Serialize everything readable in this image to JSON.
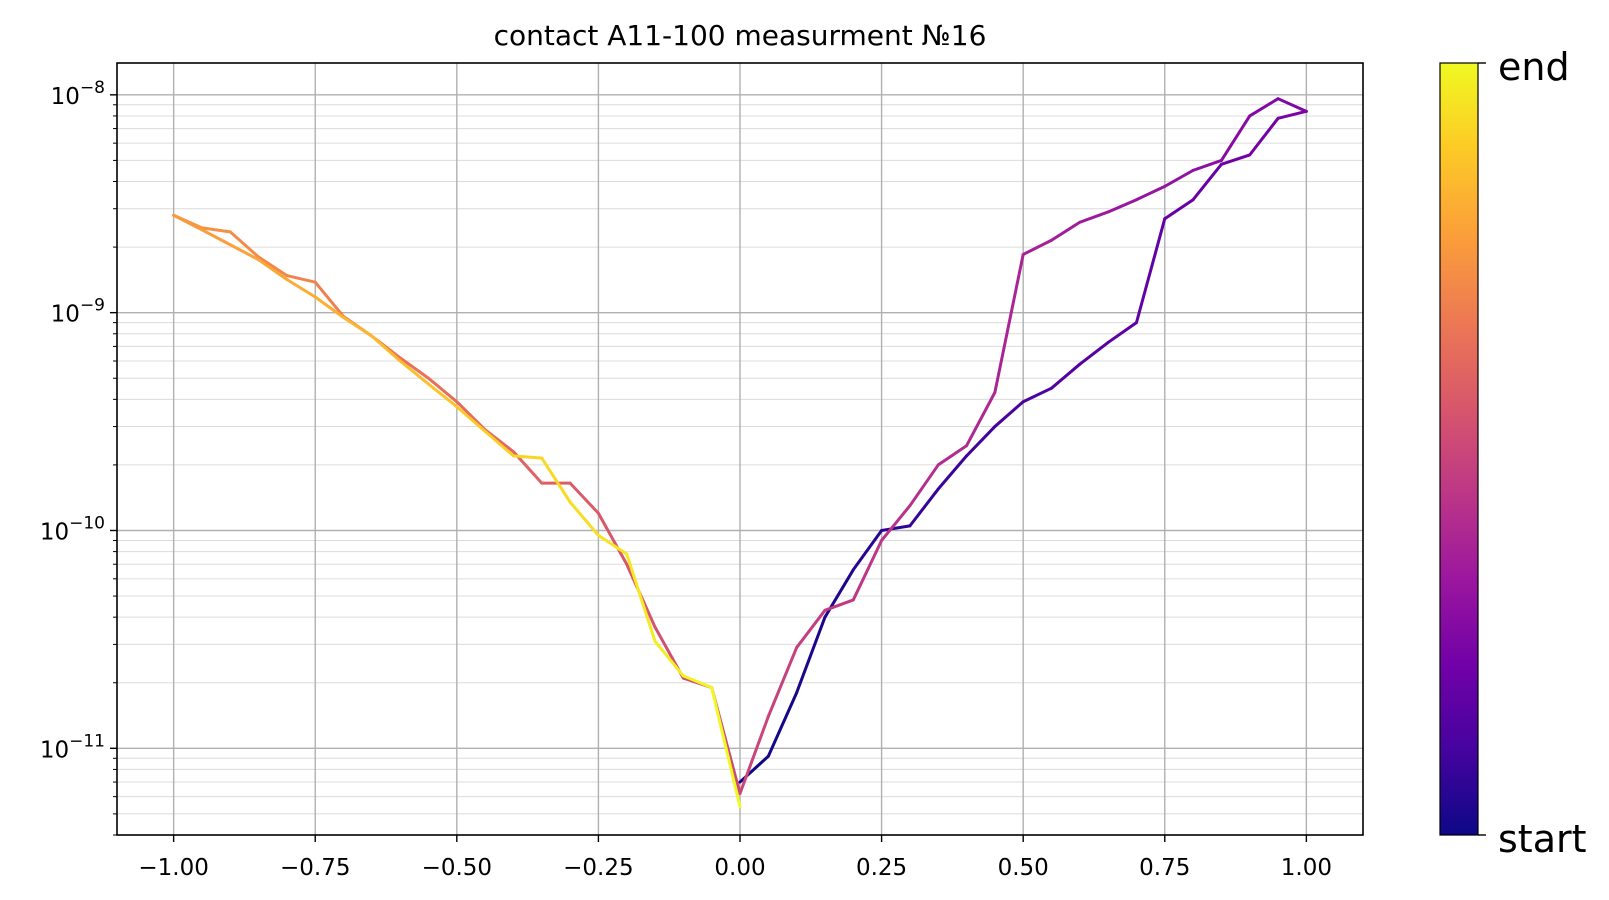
{
  "chart_data": {
    "type": "line",
    "title": "contact A11-100 measurment №16",
    "xlabel": "",
    "ylabel": "",
    "xlim": [
      -1.1,
      1.1
    ],
    "ylim": [
      4e-12,
      1.4e-08
    ],
    "yscale": "log",
    "grid": true,
    "minor_grid_y": true,
    "x_ticks": [
      "-1.00",
      "-0.75",
      "-0.50",
      "-0.25",
      "0.00",
      "0.25",
      "0.50",
      "0.75",
      "1.00"
    ],
    "x_tick_values": [
      -1.0,
      -0.75,
      -0.5,
      -0.25,
      0.0,
      0.25,
      0.5,
      0.75,
      1.0
    ],
    "y_ticks": [
      {
        "base": "10",
        "exp": "−8",
        "value": 1e-08
      },
      {
        "base": "10",
        "exp": "−9",
        "value": 1e-09
      },
      {
        "base": "10",
        "exp": "−10",
        "value": 1e-10
      },
      {
        "base": "10",
        "exp": "−11",
        "value": 1e-11
      }
    ],
    "colormap": "plasma",
    "colormap_stops": [
      "#0d0887",
      "#46039f",
      "#7201a8",
      "#9c179e",
      "#bd3786",
      "#d8576b",
      "#ed7953",
      "#fb9f3a",
      "#fdca26",
      "#f0f921"
    ],
    "colorbar": {
      "top_label": "end",
      "bottom_label": "start"
    },
    "sweep": {
      "x": [
        0.0,
        0.05,
        0.1,
        0.15,
        0.2,
        0.25,
        0.3,
        0.35,
        0.4,
        0.45,
        0.5,
        0.55,
        0.6,
        0.65,
        0.7,
        0.75,
        0.8,
        0.85,
        0.9,
        0.95,
        1.0,
        0.95,
        0.9,
        0.85,
        0.8,
        0.75,
        0.7,
        0.65,
        0.6,
        0.55,
        0.5,
        0.45,
        0.4,
        0.35,
        0.3,
        0.25,
        0.2,
        0.15,
        0.1,
        0.05,
        0.0,
        -0.05,
        -0.1,
        -0.15,
        -0.2,
        -0.25,
        -0.3,
        -0.35,
        -0.4,
        -0.45,
        -0.5,
        -0.55,
        -0.6,
        -0.65,
        -0.7,
        -0.75,
        -0.8,
        -0.85,
        -0.9,
        -0.95,
        -1.0,
        -0.95,
        -0.9,
        -0.85,
        -0.8,
        -0.75,
        -0.7,
        -0.65,
        -0.6,
        -0.55,
        -0.5,
        -0.45,
        -0.4,
        -0.35,
        -0.3,
        -0.25,
        -0.2,
        -0.15,
        -0.1,
        -0.05,
        0.0
      ],
      "y": [
        7e-12,
        9.2e-12,
        1.8e-11,
        4e-11,
        6.6e-11,
        1e-10,
        1.05e-10,
        1.55e-10,
        2.2e-10,
        3e-10,
        3.9e-10,
        4.5e-10,
        5.8e-10,
        7.3e-10,
        9e-10,
        2.7e-09,
        3.3e-09,
        4.8e-09,
        5.3e-09,
        7.8e-09,
        8.4e-09,
        9.6e-09,
        8e-09,
        5e-09,
        4.5e-09,
        3.8e-09,
        3.3e-09,
        2.9e-09,
        2.6e-09,
        2.15e-09,
        1.85e-09,
        4.3e-10,
        2.45e-10,
        2e-10,
        1.3e-10,
        9e-11,
        4.8e-11,
        4.3e-11,
        2.9e-11,
        1.4e-11,
        6.2e-12,
        1.9e-11,
        2.1e-11,
        3.6e-11,
        7e-11,
        1.2e-10,
        1.65e-10,
        1.65e-10,
        2.3e-10,
        2.9e-10,
        3.9e-10,
        5e-10,
        6.2e-10,
        7.8e-10,
        9.6e-10,
        1.38e-09,
        1.48e-09,
        1.8e-09,
        2.35e-09,
        2.45e-09,
        2.8e-09,
        2.4e-09,
        2.05e-09,
        1.75e-09,
        1.42e-09,
        1.18e-09,
        9.5e-10,
        7.8e-10,
        6e-10,
        4.7e-10,
        3.7e-10,
        2.85e-10,
        2.2e-10,
        2.15e-10,
        1.35e-10,
        9.5e-11,
        7.8e-11,
        3.1e-11,
        2.15e-11,
        1.9e-11,
        5.4e-12
      ]
    }
  }
}
